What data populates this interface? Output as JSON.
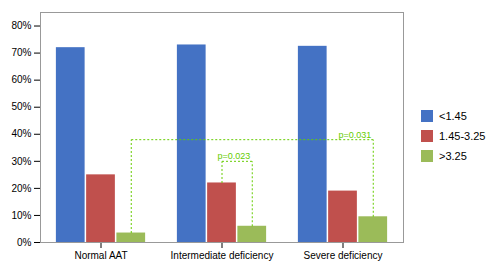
{
  "chart_data": {
    "type": "bar",
    "categories": [
      "Normal AAT",
      "Intermediate deficiency",
      "Severe deficiency"
    ],
    "series": [
      {
        "name": "<1.45",
        "color": "#4472C4",
        "values": [
          72,
          73,
          72.5
        ]
      },
      {
        "name": "1.45-3.25",
        "color": "#C0504D",
        "values": [
          25,
          22,
          19
        ]
      },
      {
        "name": ">3.25",
        "color": "#9BBB59",
        "values": [
          3.5,
          6,
          9.5
        ]
      }
    ],
    "ylim": [
      0,
      85
    ],
    "yticks": [
      {
        "value": 0,
        "label": "0%"
      },
      {
        "value": 10,
        "label": "10%"
      },
      {
        "value": 20,
        "label": "20%"
      },
      {
        "value": 30,
        "label": "30%"
      },
      {
        "value": 40,
        "label": "40%"
      },
      {
        "value": 50,
        "label": "50%"
      },
      {
        "value": 60,
        "label": "60%"
      },
      {
        "value": 70,
        "label": "70%"
      },
      {
        "value": 80,
        "label": "80%"
      }
    ],
    "grid": false,
    "legend": "right",
    "annotations": [
      {
        "type": "bracket",
        "text": "p=0.023",
        "y": 30,
        "color": "#66CC00",
        "from": {
          "category": "Intermediate deficiency",
          "series": "1.45-3.25"
        },
        "to": {
          "category": "Intermediate deficiency",
          "series": ">3.25"
        }
      },
      {
        "type": "bracket",
        "text": "p=0.031",
        "y": 38,
        "color": "#66CC00",
        "from": {
          "category": "Normal AAT",
          "series": ">3.25"
        },
        "to": {
          "category": "Severe deficiency",
          "series": ">3.25"
        }
      }
    ]
  }
}
